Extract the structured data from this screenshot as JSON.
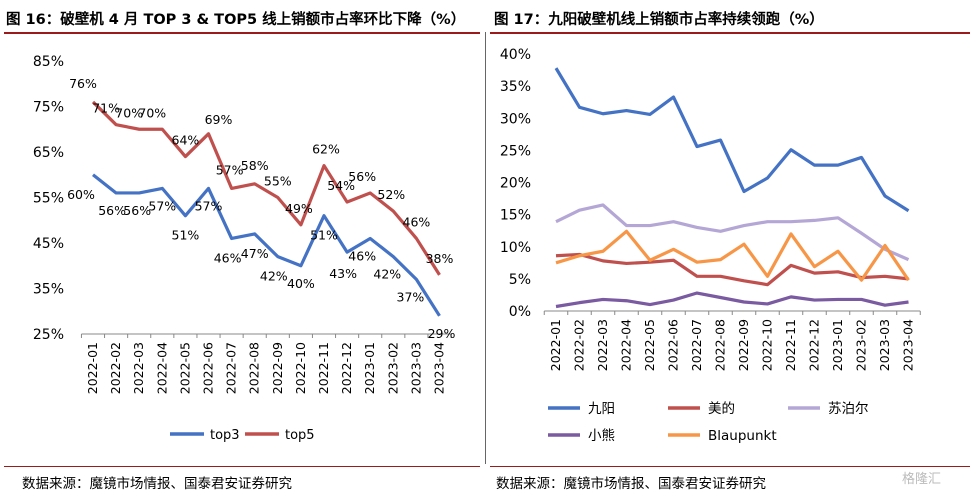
{
  "left": {
    "title": "图 16：破壁机 4 月 TOP 3 & TOP5 线上销额市占率环比下降（%）",
    "source": "数据来源：魔镜市场情报、国泰君安证券研究"
  },
  "right": {
    "title": "图 17：九阳破壁机线上销额市占率持续领跑（%）",
    "source": "数据来源：魔镜市场情报、国泰君安证券研究"
  },
  "watermark": "格隆汇",
  "colors": {
    "blue": "#4472c4",
    "red": "#c0504d",
    "lavender": "#b4a7d6",
    "purple": "#7a5aa0",
    "orange": "#f79646",
    "title_rule": "#9b1b1b"
  },
  "chart_data": [
    {
      "type": "line",
      "categories": [
        "2022-01",
        "2022-02",
        "2022-03",
        "2022-04",
        "2022-05",
        "2022-06",
        "2022-07",
        "2022-08",
        "2022-09",
        "2022-10",
        "2022-11",
        "2022-12",
        "2023-01",
        "2023-02",
        "2023-03",
        "2023-04"
      ],
      "ylim": [
        25,
        85
      ],
      "yticks": [
        25,
        35,
        45,
        55,
        65,
        75,
        85
      ],
      "ytick_labels": [
        "25%",
        "35%",
        "45%",
        "55%",
        "65%",
        "75%",
        "85%"
      ],
      "grid": false,
      "legend_position": "bottom",
      "data_labels": true,
      "series": [
        {
          "name": "top3",
          "color": "#4472c4",
          "values": [
            60,
            56,
            56,
            57,
            51,
            57,
            46,
            47,
            42,
            40,
            51,
            43,
            46,
            42,
            37,
            29
          ],
          "labels": [
            "60%",
            "56%",
            "56%",
            "57%",
            "51%",
            "57%",
            "46%",
            "47%",
            "42%",
            "40%",
            "51%",
            "43%",
            "46%",
            "42%",
            "37%",
            "29%"
          ]
        },
        {
          "name": "top5",
          "color": "#c0504d",
          "values": [
            76,
            71,
            70,
            70,
            64,
            69,
            57,
            58,
            55,
            49,
            62,
            54,
            56,
            52,
            46,
            38
          ],
          "labels": [
            "76%",
            "71%",
            "70%",
            "70%",
            "64%",
            "69%",
            "57%",
            "58%",
            "55%",
            "49%",
            "62%",
            "54%",
            "56%",
            "52%",
            "46%",
            "38%"
          ]
        }
      ]
    },
    {
      "type": "line",
      "categories": [
        "2022-01",
        "2022-02",
        "2022-03",
        "2022-04",
        "2022-05",
        "2022-06",
        "2022-07",
        "2022-08",
        "2022-09",
        "2022-10",
        "2022-11",
        "2022-12",
        "2023-01",
        "2023-02",
        "2023-03",
        "2023-04"
      ],
      "ylim": [
        0,
        40
      ],
      "yticks": [
        0,
        5,
        10,
        15,
        20,
        25,
        30,
        35,
        40
      ],
      "ytick_labels": [
        "0%",
        "5%",
        "10%",
        "15%",
        "20%",
        "25%",
        "30%",
        "35%",
        "40%"
      ],
      "grid": false,
      "legend_position": "bottom",
      "data_labels": false,
      "series": [
        {
          "name": "九阳",
          "color": "#4472c4",
          "values": [
            37.8,
            31.7,
            30.7,
            31.2,
            30.6,
            33.3,
            25.6,
            26.6,
            18.6,
            20.7,
            25.1,
            22.7,
            22.7,
            23.9,
            17.9,
            15.6
          ]
        },
        {
          "name": "美的",
          "color": "#c0504d",
          "values": [
            8.6,
            8.8,
            7.8,
            7.4,
            7.6,
            7.9,
            5.4,
            5.4,
            4.7,
            4.1,
            7.1,
            5.9,
            6.1,
            5.2,
            5.4,
            5.0
          ]
        },
        {
          "name": "苏泊尔",
          "color": "#b4a7d6",
          "values": [
            13.9,
            15.7,
            16.5,
            13.3,
            13.3,
            13.9,
            13.0,
            12.4,
            13.3,
            13.9,
            13.9,
            14.1,
            14.5,
            12.1,
            9.6,
            8.0
          ]
        },
        {
          "name": "小熊",
          "color": "#7a5aa0",
          "values": [
            0.7,
            1.3,
            1.8,
            1.6,
            1.0,
            1.7,
            2.8,
            2.1,
            1.4,
            1.1,
            2.2,
            1.7,
            1.8,
            1.8,
            0.9,
            1.4
          ]
        },
        {
          "name": "Blaupunkt",
          "color": "#f79646",
          "values": [
            7.5,
            8.6,
            9.3,
            12.4,
            7.9,
            9.6,
            7.6,
            8.0,
            10.4,
            5.4,
            12.0,
            6.9,
            9.3,
            4.8,
            10.2,
            4.8
          ]
        }
      ]
    }
  ]
}
